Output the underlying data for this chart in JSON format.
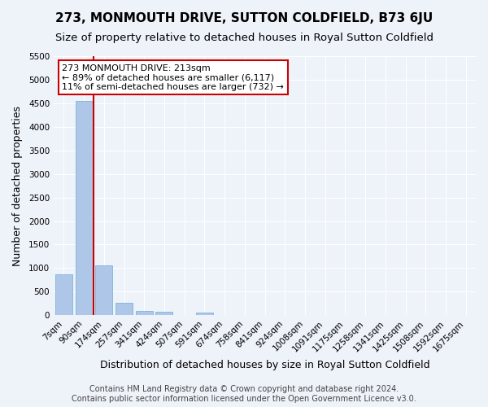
{
  "title": "273, MONMOUTH DRIVE, SUTTON COLDFIELD, B73 6JU",
  "subtitle": "Size of property relative to detached houses in Royal Sutton Coldfield",
  "xlabel": "Distribution of detached houses by size in Royal Sutton Coldfield",
  "ylabel": "Number of detached properties",
  "footer_line1": "Contains HM Land Registry data © Crown copyright and database right 2024.",
  "footer_line2": "Contains public sector information licensed under the Open Government Licence v3.0.",
  "annotation_line1": "273 MONMOUTH DRIVE: 213sqm",
  "annotation_line2": "← 89% of detached houses are smaller (6,117)",
  "annotation_line3": "11% of semi-detached houses are larger (732) →",
  "bin_labels": [
    "7sqm",
    "90sqm",
    "174sqm",
    "257sqm",
    "341sqm",
    "424sqm",
    "507sqm",
    "591sqm",
    "674sqm",
    "758sqm",
    "841sqm",
    "924sqm",
    "1008sqm",
    "1091sqm",
    "1175sqm",
    "1258sqm",
    "1341sqm",
    "1425sqm",
    "1508sqm",
    "1592sqm",
    "1675sqm"
  ],
  "bar_values": [
    870,
    4550,
    1060,
    270,
    90,
    80,
    0,
    60,
    0,
    0,
    0,
    0,
    0,
    0,
    0,
    0,
    0,
    0,
    0,
    0,
    0
  ],
  "bar_color": "#aec6e8",
  "bar_edge_color": "#6aaed6",
  "vline_x": 1.5,
  "vline_color": "#cc0000",
  "ylim": [
    0,
    5500
  ],
  "yticks": [
    0,
    500,
    1000,
    1500,
    2000,
    2500,
    3000,
    3500,
    4000,
    4500,
    5000,
    5500
  ],
  "background_color": "#eef2f9",
  "grid_color": "#ffffff",
  "annotation_box_color": "#ffffff",
  "annotation_box_edge_color": "#cc0000",
  "title_fontsize": 11,
  "subtitle_fontsize": 9.5,
  "axis_label_fontsize": 9,
  "tick_fontsize": 7.5,
  "annotation_fontsize": 8,
  "footer_fontsize": 7
}
